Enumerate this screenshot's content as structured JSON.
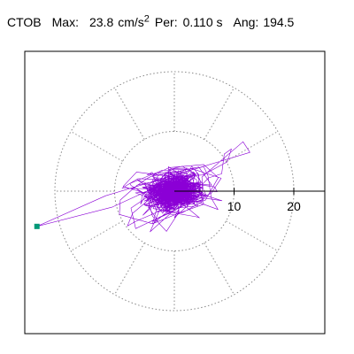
{
  "header": {
    "station": "CTOB",
    "max_label": "Max:",
    "max_value": "23.8",
    "max_unit": "cm/s",
    "max_unit_exp": "2",
    "per_label": "Per:",
    "per_value": "0.110 s",
    "ang_label": "Ang:",
    "ang_value": "194.5"
  },
  "colors": {
    "trace": "#8b00d6",
    "marker": "#009977",
    "grid": "#888888",
    "axis": "#000000",
    "frame": "#000000",
    "background": "#ffffff"
  },
  "chart_data": {
    "type": "scatter",
    "title": "",
    "polar_rings": [
      10,
      20
    ],
    "radial_tick_labels": [
      "10",
      "20"
    ],
    "grid_style": "dotted",
    "radial_spokes_deg": [
      0,
      30,
      60,
      90,
      120,
      150,
      180,
      210,
      240,
      270,
      300,
      330
    ],
    "outer_ring_radius": 20,
    "max_amplitude": 23.8,
    "max_angle_deg": 194.5,
    "max_point": {
      "x": -23.0,
      "y": -5.9
    },
    "ellipse_axis_angle_deg": 18,
    "core_spread": 5.5,
    "lobe_spread": 11,
    "trace_points": 1400,
    "random_seed": 7
  }
}
